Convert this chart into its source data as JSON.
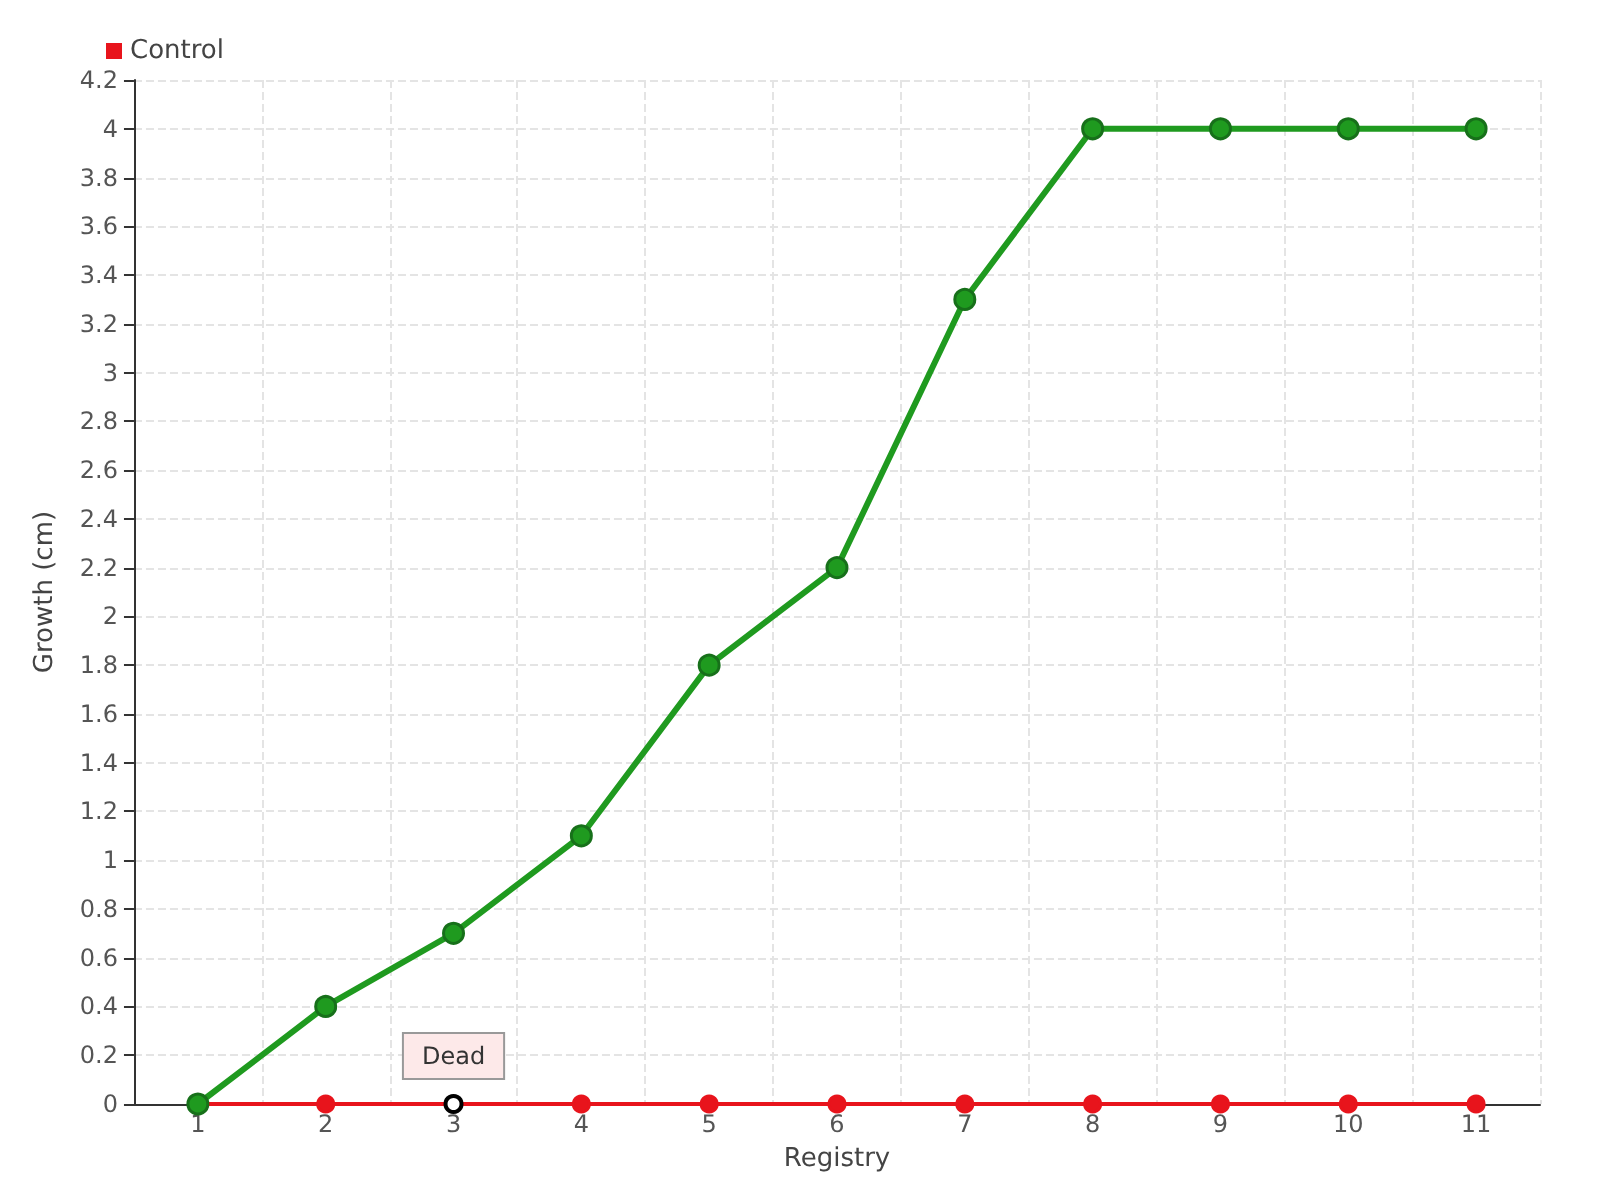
{
  "chart_data": {
    "type": "line",
    "xlabel": "Registry",
    "ylabel": "Growth (cm)",
    "categories": [
      "1",
      "2",
      "3",
      "4",
      "5",
      "6",
      "7",
      "8",
      "9",
      "10",
      "11"
    ],
    "series": [
      {
        "color": "#1f9a1f",
        "values": [
          0,
          0.4,
          0.7,
          1.1,
          1.8,
          2.2,
          3.3,
          4,
          4,
          4,
          4
        ]
      },
      {
        "name": "Control",
        "color": "#e8141c",
        "values": [
          0,
          0,
          0,
          0,
          0,
          0,
          0,
          0,
          0,
          0,
          0
        ]
      }
    ],
    "annotations": [
      {
        "text": "Dead",
        "x": "3",
        "y": 0
      }
    ],
    "ylim": [
      0,
      4.2
    ],
    "yticks": [
      0,
      0.2,
      0.4,
      0.6,
      0.8,
      1,
      1.2,
      1.4,
      1.6,
      1.8,
      2,
      2.2,
      2.4,
      2.6,
      2.8,
      3,
      3.2,
      3.4,
      3.6,
      3.8,
      4,
      4.2
    ],
    "grid": true,
    "legend": "top left",
    "marker": "circle",
    "line_style": "solid"
  }
}
